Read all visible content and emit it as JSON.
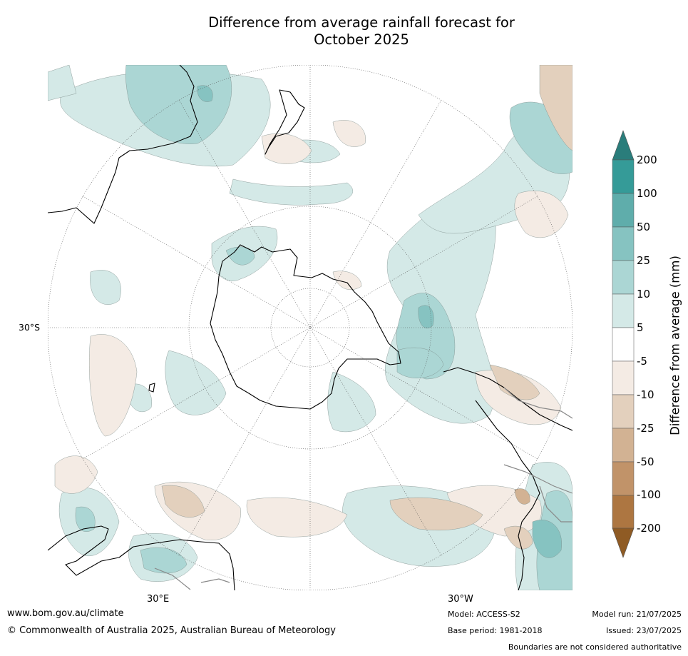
{
  "title_line1": "Difference from average rainfall forecast for",
  "title_line2": "October 2025",
  "axes": {
    "lat_label": "30°S",
    "lon_label_left": "30°E",
    "lon_label_right": "30°W"
  },
  "colorbar": {
    "label": "Difference from average (mm)",
    "ticks": [
      "200",
      "100",
      "50",
      "25",
      "10",
      "5",
      "-5",
      "-10",
      "-25",
      "-50",
      "-100",
      "-200"
    ],
    "colors": {
      "over_200": "#2a7d7b",
      "100_200": "#359b98",
      "50_100": "#5fadab",
      "25_50": "#86c3c1",
      "10_25": "#abd6d4",
      "5_10": "#d4e9e7",
      "neutral": "#ffffff",
      "neg5_neg10": "#f4ebe4",
      "neg10_neg25": "#e3d0bd",
      "neg25_neg50": "#d2b293",
      "neg50_neg100": "#c19369",
      "neg100_neg200": "#ad7641",
      "under_neg200": "#8f5b24"
    }
  },
  "footer": {
    "website": "www.bom.gov.au/climate",
    "copyright": "© Commonwealth of Australia 2025, Australian Bureau of Meteorology",
    "model": "Model: ACCESS-S2",
    "base_period": "Base period: 1981-2018",
    "model_run": "Model run: 21/07/2025",
    "issued": "Issued: 23/07/2025",
    "disclaimer": "Boundaries are not considered authoritative"
  }
}
